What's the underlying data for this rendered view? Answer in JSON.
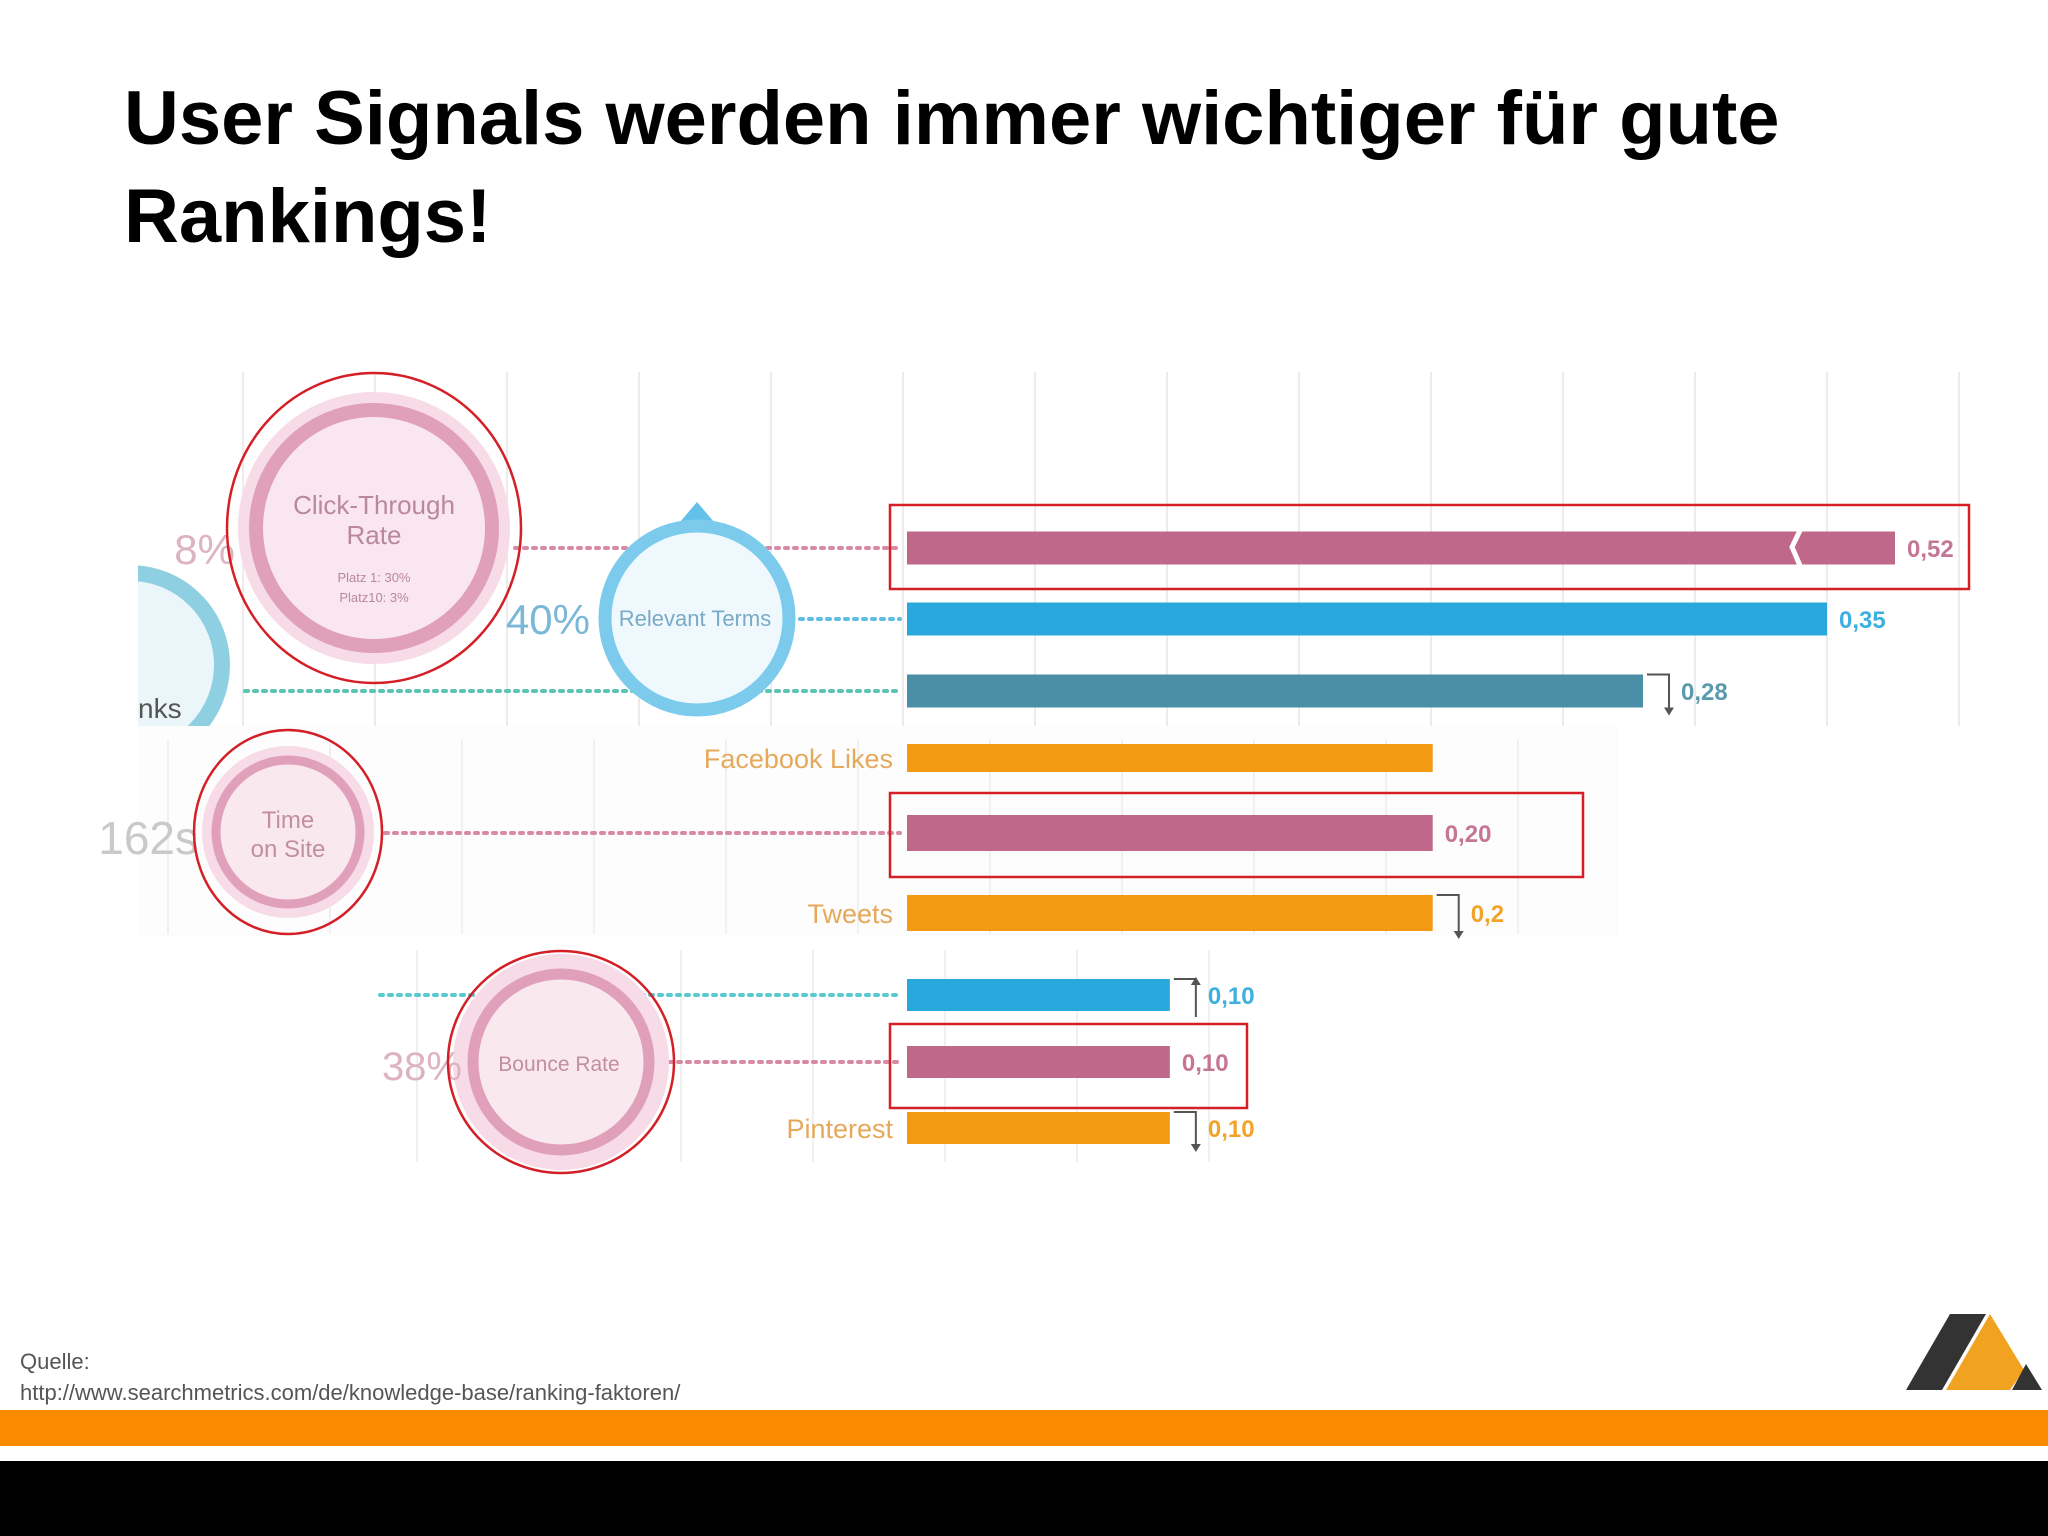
{
  "title": "User Signals werden immer wichtiger für gute Rankings!",
  "source": {
    "label": "Quelle:",
    "url": "http://www.searchmetrics.com/de/knowledge-base/ranking-faktoren/"
  },
  "colors": {
    "user_signal": "#c0688a",
    "onpage_blue": "#29a8dd",
    "backlink_teal": "#4a8fa5",
    "social_orange": "#f39a12",
    "highlight_red": "#d41f26",
    "brand_orange": "#fb8a00"
  },
  "chart_data": {
    "type": "bar",
    "orientation": "horizontal",
    "title": "",
    "xlabel": "",
    "ylabel": "",
    "xlim": [
      0,
      0.52
    ],
    "grid": true,
    "highlighted_series": "user signals",
    "bars": [
      {
        "label": "",
        "value": 0.52,
        "value_label": "0,52",
        "color": "#c0688a",
        "highlighted": true,
        "axis_break": true
      },
      {
        "label": "",
        "value": 0.35,
        "value_label": "0,35",
        "color": "#29a8dd",
        "highlighted": false
      },
      {
        "label": "",
        "value": 0.28,
        "value_label": "0,28",
        "color": "#4a8fa5",
        "highlighted": false,
        "trend": "down"
      },
      {
        "label": "Facebook Likes",
        "value": 0.2,
        "value_label": "",
        "color": "#f39a12",
        "highlighted": false
      },
      {
        "label": "",
        "value": 0.2,
        "value_label": "0,20",
        "color": "#c0688a",
        "highlighted": true
      },
      {
        "label": "Tweets",
        "value": 0.2,
        "value_label": "0,2",
        "color": "#f39a12",
        "highlighted": false,
        "trend": "down"
      },
      {
        "label": "",
        "value": 0.1,
        "value_label": "0,10",
        "color": "#29a8dd",
        "highlighted": false,
        "trend": "up"
      },
      {
        "label": "",
        "value": 0.1,
        "value_label": "0,10",
        "color": "#c0688a",
        "highlighted": true
      },
      {
        "label": "Pinterest",
        "value": 0.1,
        "value_label": "0,10",
        "color": "#f39a12",
        "highlighted": false,
        "trend": "down"
      }
    ],
    "annotations": [
      {
        "name": "Click-Through Rate",
        "lines": [
          "Click-Through",
          "Rate"
        ],
        "details": [
          "Platz 1: 30%",
          "Platz10: 3%"
        ],
        "percent": "8%"
      },
      {
        "name": "Relevant Terms",
        "lines": [
          "Relevant Terms"
        ],
        "percent": "40%"
      },
      {
        "name": "Backlinks",
        "lines": [
          "nks"
        ],
        "percent": ""
      },
      {
        "name": "Time on Site",
        "lines": [
          "Time",
          "on Site"
        ],
        "percent": "162s"
      },
      {
        "name": "Bounce Rate",
        "lines": [
          "Bounce Rate"
        ],
        "percent": "38%"
      }
    ]
  }
}
